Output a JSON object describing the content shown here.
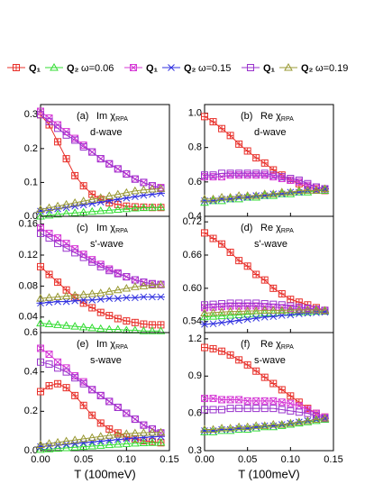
{
  "legend_groups": [
    "ω=0.06",
    "ω=0.15",
    "ω=0.19"
  ],
  "chart_data": [
    {
      "type": "line",
      "panel": "(a)",
      "quantity": "Im χ",
      "subscript": "RPA",
      "wave": "d-wave",
      "x": [
        0,
        0.01,
        0.02,
        0.03,
        0.04,
        0.05,
        0.06,
        0.07,
        0.08,
        0.09,
        0.1,
        0.11,
        0.12,
        0.13,
        0.14
      ],
      "xlim": [
        0,
        0.15
      ],
      "xticks": [
        0,
        0.05,
        0.1,
        0.15
      ],
      "ylim": [
        0,
        0.33
      ],
      "yticks": [
        {
          "value": 0,
          "label": "0.0"
        },
        0.1,
        0.2,
        0.3
      ],
      "series": [
        {
          "name": "Q₁",
          "color": "#e8302a",
          "marker": "square-plus",
          "values": [
            0.3,
            0.27,
            0.22,
            0.17,
            0.12,
            0.09,
            0.065,
            0.05,
            0.04,
            0.035,
            0.03,
            0.028,
            0.027,
            0.026,
            0.026
          ]
        },
        {
          "name": "Q₂",
          "color": "#33dd33",
          "marker": "triangle",
          "values": [
            0.0,
            0.003,
            0.006,
            0.008,
            0.01,
            0.012,
            0.014,
            0.016,
            0.018,
            0.02,
            0.022,
            0.024,
            0.025,
            0.026,
            0.027
          ]
        },
        {
          "name": "Q₁",
          "color": "#d63ad6",
          "marker": "square-x",
          "values": [
            0.31,
            0.29,
            0.27,
            0.25,
            0.23,
            0.21,
            0.19,
            0.17,
            0.155,
            0.14,
            0.125,
            0.11,
            0.1,
            0.09,
            0.085
          ]
        },
        {
          "name": "Q₂",
          "color": "#3030e0",
          "marker": "star",
          "values": [
            0.015,
            0.018,
            0.022,
            0.026,
            0.03,
            0.034,
            0.038,
            0.042,
            0.046,
            0.05,
            0.054,
            0.058,
            0.062,
            0.065,
            0.068
          ]
        },
        {
          "name": "Q₁",
          "color": "#9933cc",
          "marker": "square",
          "values": [
            0.3,
            0.28,
            0.26,
            0.24,
            0.225,
            0.205,
            0.19,
            0.17,
            0.155,
            0.14,
            0.125,
            0.11,
            0.1,
            0.09,
            0.082
          ]
        },
        {
          "name": "Q₂",
          "color": "#999933",
          "marker": "triangle",
          "values": [
            0.02,
            0.025,
            0.03,
            0.035,
            0.04,
            0.045,
            0.05,
            0.055,
            0.06,
            0.065,
            0.07,
            0.075,
            0.078,
            0.08,
            0.082
          ]
        }
      ]
    },
    {
      "type": "line",
      "panel": "(b)",
      "quantity": "Re χ",
      "subscript": "RPA",
      "wave": "d-wave",
      "x": [
        0,
        0.01,
        0.02,
        0.03,
        0.04,
        0.05,
        0.06,
        0.07,
        0.08,
        0.09,
        0.1,
        0.11,
        0.12,
        0.13,
        0.14
      ],
      "xlim": [
        0,
        0.15
      ],
      "xticks": [
        0,
        0.05,
        0.1,
        0.15
      ],
      "ylim": [
        0.4,
        1.05
      ],
      "yticks": [
        0.4,
        0.6,
        0.8,
        {
          "value": 1,
          "label": "1.0"
        }
      ],
      "series": [
        {
          "color": "#e8302a",
          "marker": "square-plus",
          "values": [
            0.98,
            0.95,
            0.91,
            0.87,
            0.82,
            0.78,
            0.74,
            0.71,
            0.67,
            0.64,
            0.61,
            0.59,
            0.57,
            0.56,
            0.55
          ]
        },
        {
          "color": "#33dd33",
          "marker": "triangle",
          "values": [
            0.48,
            0.49,
            0.49,
            0.5,
            0.5,
            0.51,
            0.51,
            0.52,
            0.52,
            0.53,
            0.53,
            0.54,
            0.54,
            0.55,
            0.55
          ]
        },
        {
          "color": "#d63ad6",
          "marker": "square-x",
          "values": [
            0.63,
            0.63,
            0.63,
            0.64,
            0.64,
            0.64,
            0.64,
            0.64,
            0.63,
            0.62,
            0.61,
            0.6,
            0.58,
            0.57,
            0.56
          ]
        },
        {
          "color": "#3030e0",
          "marker": "star",
          "values": [
            0.49,
            0.49,
            0.5,
            0.5,
            0.51,
            0.51,
            0.52,
            0.52,
            0.53,
            0.53,
            0.54,
            0.54,
            0.55,
            0.55,
            0.56
          ]
        },
        {
          "color": "#9933cc",
          "marker": "square",
          "values": [
            0.64,
            0.64,
            0.65,
            0.65,
            0.65,
            0.65,
            0.65,
            0.65,
            0.64,
            0.63,
            0.62,
            0.61,
            0.59,
            0.57,
            0.56
          ]
        },
        {
          "color": "#999933",
          "marker": "triangle",
          "values": [
            0.5,
            0.5,
            0.51,
            0.51,
            0.52,
            0.52,
            0.52,
            0.53,
            0.53,
            0.54,
            0.54,
            0.55,
            0.55,
            0.55,
            0.56
          ]
        }
      ]
    },
    {
      "type": "line",
      "panel": "(c)",
      "quantity": "Im χ",
      "subscript": "RPA",
      "wave": "s'-wave",
      "x": [
        0,
        0.01,
        0.02,
        0.03,
        0.04,
        0.05,
        0.06,
        0.07,
        0.08,
        0.09,
        0.1,
        0.11,
        0.12,
        0.13,
        0.14
      ],
      "xlim": [
        0,
        0.15
      ],
      "xticks": [
        0,
        0.05,
        0.1,
        0.15
      ],
      "ylim": [
        0.02,
        0.17
      ],
      "yticks": [
        0.04,
        0.08,
        0.12,
        0.16
      ],
      "series": [
        {
          "color": "#e8302a",
          "marker": "square-plus",
          "values": [
            0.105,
            0.095,
            0.085,
            0.075,
            0.065,
            0.058,
            0.052,
            0.046,
            0.042,
            0.038,
            0.035,
            0.033,
            0.031,
            0.03,
            0.03
          ]
        },
        {
          "color": "#33dd33",
          "marker": "triangle",
          "values": [
            0.032,
            0.031,
            0.03,
            0.029,
            0.028,
            0.027,
            0.026,
            0.025,
            0.024,
            0.024,
            0.023,
            0.023,
            0.022,
            0.022,
            0.022
          ]
        },
        {
          "color": "#d63ad6",
          "marker": "square-x",
          "values": [
            0.155,
            0.148,
            0.142,
            0.135,
            0.128,
            0.121,
            0.114,
            0.108,
            0.102,
            0.097,
            0.092,
            0.088,
            0.085,
            0.083,
            0.082
          ]
        },
        {
          "color": "#3030e0",
          "marker": "star",
          "values": [
            0.058,
            0.059,
            0.06,
            0.06,
            0.061,
            0.062,
            0.062,
            0.063,
            0.064,
            0.064,
            0.065,
            0.065,
            0.066,
            0.066,
            0.066
          ]
        },
        {
          "color": "#9933cc",
          "marker": "square",
          "values": [
            0.148,
            0.142,
            0.135,
            0.129,
            0.123,
            0.117,
            0.111,
            0.105,
            0.1,
            0.096,
            0.092,
            0.088,
            0.085,
            0.083,
            0.082
          ]
        },
        {
          "color": "#999933",
          "marker": "triangle",
          "values": [
            0.064,
            0.065,
            0.066,
            0.067,
            0.068,
            0.069,
            0.07,
            0.071,
            0.073,
            0.075,
            0.077,
            0.079,
            0.08,
            0.081,
            0.082
          ]
        }
      ]
    },
    {
      "type": "line",
      "panel": "(d)",
      "quantity": "Re χ",
      "subscript": "RPA",
      "wave": "s'-wave",
      "x": [
        0,
        0.01,
        0.02,
        0.03,
        0.04,
        0.05,
        0.06,
        0.07,
        0.08,
        0.09,
        0.1,
        0.11,
        0.12,
        0.13,
        0.14
      ],
      "xlim": [
        0,
        0.15
      ],
      "xticks": [
        0,
        0.05,
        0.1,
        0.15
      ],
      "ylim": [
        0.52,
        0.73
      ],
      "yticks": [
        0.54,
        {
          "value": 0.6,
          "label": "0.60"
        },
        0.66,
        0.72
      ],
      "series": [
        {
          "color": "#e8302a",
          "marker": "square-plus",
          "values": [
            0.7,
            0.69,
            0.68,
            0.665,
            0.65,
            0.64,
            0.625,
            0.615,
            0.6,
            0.59,
            0.58,
            0.575,
            0.57,
            0.565,
            0.56
          ]
        },
        {
          "color": "#33dd33",
          "marker": "triangle",
          "values": [
            0.548,
            0.549,
            0.55,
            0.551,
            0.552,
            0.553,
            0.554,
            0.555,
            0.555,
            0.556,
            0.556,
            0.557,
            0.557,
            0.558,
            0.558
          ]
        },
        {
          "color": "#d63ad6",
          "marker": "square-x",
          "values": [
            0.565,
            0.566,
            0.567,
            0.568,
            0.568,
            0.568,
            0.568,
            0.567,
            0.566,
            0.565,
            0.564,
            0.563,
            0.562,
            0.561,
            0.56
          ]
        },
        {
          "color": "#3030e0",
          "marker": "star",
          "values": [
            0.535,
            0.536,
            0.538,
            0.54,
            0.542,
            0.544,
            0.546,
            0.548,
            0.549,
            0.551,
            0.552,
            0.554,
            0.555,
            0.556,
            0.557
          ]
        },
        {
          "color": "#9933cc",
          "marker": "square",
          "values": [
            0.57,
            0.571,
            0.572,
            0.573,
            0.573,
            0.573,
            0.573,
            0.572,
            0.571,
            0.57,
            0.568,
            0.566,
            0.564,
            0.562,
            0.56
          ]
        },
        {
          "color": "#999933",
          "marker": "triangle",
          "values": [
            0.555,
            0.556,
            0.557,
            0.558,
            0.558,
            0.559,
            0.559,
            0.56,
            0.56,
            0.56,
            0.561,
            0.561,
            0.561,
            0.561,
            0.56
          ]
        }
      ]
    },
    {
      "type": "line",
      "panel": "(e)",
      "quantity": "Im χ",
      "subscript": "RPA",
      "wave": "s-wave",
      "x": [
        0,
        0.01,
        0.02,
        0.03,
        0.04,
        0.05,
        0.06,
        0.07,
        0.08,
        0.09,
        0.1,
        0.11,
        0.12,
        0.13,
        0.14
      ],
      "xlim": [
        0,
        0.15
      ],
      "xticks": [
        {
          "value": 0,
          "label": "0.00"
        },
        0.05,
        {
          "value": 0.1,
          "label": "0.10"
        },
        0.15
      ],
      "xlabel": "T (100meV)",
      "ylim": [
        0,
        0.6
      ],
      "yticks": [
        {
          "value": 0,
          "label": "0.0"
        },
        0.2,
        0.4,
        0.6
      ],
      "series": [
        {
          "color": "#e8302a",
          "marker": "square-plus",
          "values": [
            0.3,
            0.33,
            0.34,
            0.32,
            0.28,
            0.23,
            0.18,
            0.14,
            0.11,
            0.09,
            0.07,
            0.06,
            0.05,
            0.045,
            0.04
          ]
        },
        {
          "color": "#33dd33",
          "marker": "triangle",
          "values": [
            0.005,
            0.008,
            0.011,
            0.014,
            0.017,
            0.02,
            0.023,
            0.026,
            0.029,
            0.032,
            0.035,
            0.037,
            0.039,
            0.04,
            0.041
          ]
        },
        {
          "color": "#d63ad6",
          "marker": "square-x",
          "values": [
            0.52,
            0.49,
            0.45,
            0.42,
            0.38,
            0.35,
            0.31,
            0.28,
            0.25,
            0.22,
            0.19,
            0.16,
            0.13,
            0.11,
            0.09
          ]
        },
        {
          "color": "#3030e0",
          "marker": "star",
          "values": [
            0.02,
            0.024,
            0.028,
            0.032,
            0.036,
            0.04,
            0.044,
            0.048,
            0.052,
            0.056,
            0.06,
            0.064,
            0.067,
            0.07,
            0.072
          ]
        },
        {
          "color": "#9933cc",
          "marker": "square",
          "values": [
            0.45,
            0.44,
            0.42,
            0.4,
            0.37,
            0.34,
            0.31,
            0.28,
            0.25,
            0.22,
            0.19,
            0.16,
            0.13,
            0.11,
            0.09
          ]
        },
        {
          "color": "#999933",
          "marker": "triangle",
          "values": [
            0.03,
            0.036,
            0.042,
            0.048,
            0.054,
            0.06,
            0.066,
            0.072,
            0.077,
            0.082,
            0.086,
            0.089,
            0.091,
            0.092,
            0.093
          ]
        }
      ]
    },
    {
      "type": "line",
      "panel": "(f)",
      "quantity": "Re χ",
      "subscript": "RPA",
      "wave": "s-wave",
      "x": [
        0,
        0.01,
        0.02,
        0.03,
        0.04,
        0.05,
        0.06,
        0.07,
        0.08,
        0.09,
        0.1,
        0.11,
        0.12,
        0.13,
        0.14
      ],
      "xlim": [
        0,
        0.15
      ],
      "xticks": [
        {
          "value": 0,
          "label": "0.00"
        },
        0.05,
        {
          "value": 0.1,
          "label": "0.10"
        },
        0.15
      ],
      "xlabel": "T (100meV)",
      "ylim": [
        0.3,
        1.25
      ],
      "yticks": [
        0.3,
        0.6,
        0.9,
        1.2
      ],
      "series": [
        {
          "color": "#e8302a",
          "marker": "square-plus",
          "values": [
            1.13,
            1.12,
            1.1,
            1.07,
            1.03,
            0.99,
            0.94,
            0.89,
            0.84,
            0.79,
            0.74,
            0.69,
            0.64,
            0.6,
            0.57
          ]
        },
        {
          "color": "#33dd33",
          "marker": "triangle",
          "values": [
            0.45,
            0.45,
            0.46,
            0.46,
            0.47,
            0.47,
            0.48,
            0.49,
            0.49,
            0.5,
            0.51,
            0.52,
            0.53,
            0.54,
            0.55
          ]
        },
        {
          "color": "#d63ad6",
          "marker": "square-x",
          "values": [
            0.72,
            0.72,
            0.71,
            0.71,
            0.71,
            0.7,
            0.7,
            0.7,
            0.7,
            0.69,
            0.68,
            0.66,
            0.63,
            0.6,
            0.57
          ]
        },
        {
          "color": "#3030e0",
          "marker": "star",
          "values": [
            0.46,
            0.46,
            0.47,
            0.47,
            0.48,
            0.48,
            0.49,
            0.5,
            0.5,
            0.51,
            0.52,
            0.53,
            0.54,
            0.55,
            0.56
          ]
        },
        {
          "color": "#9933cc",
          "marker": "square",
          "values": [
            0.63,
            0.63,
            0.63,
            0.64,
            0.64,
            0.64,
            0.64,
            0.64,
            0.64,
            0.63,
            0.62,
            0.61,
            0.6,
            0.58,
            0.56
          ]
        },
        {
          "color": "#999933",
          "marker": "triangle",
          "values": [
            0.47,
            0.47,
            0.48,
            0.48,
            0.49,
            0.49,
            0.5,
            0.5,
            0.51,
            0.51,
            0.52,
            0.53,
            0.54,
            0.55,
            0.56
          ]
        }
      ]
    }
  ]
}
